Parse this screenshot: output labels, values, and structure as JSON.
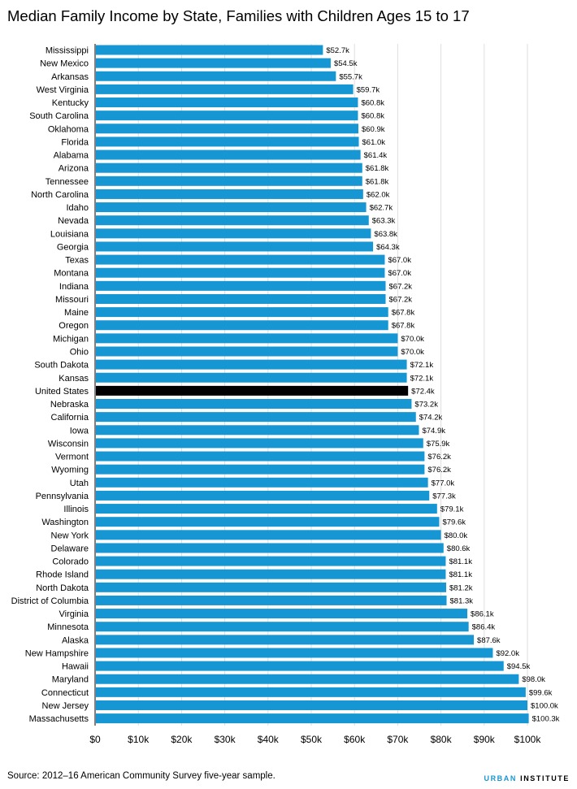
{
  "title": "Median Family Income by State, Families with Children Ages 15 to 17",
  "source": "Source: 2012–16 American Community Survey five-year sample.",
  "brand": {
    "part1": "URBAN",
    "part2": "INSTITUTE"
  },
  "colors": {
    "bar": "#1696d2",
    "highlight": "#000000",
    "grid": "#dedede",
    "text": "#000000"
  },
  "chart_data": {
    "type": "bar",
    "orientation": "horizontal",
    "title": "Median Family Income by State, Families with Children Ages 15 to 17",
    "xlabel": "",
    "ylabel": "",
    "xlim": [
      0,
      100000
    ],
    "grid": true,
    "highlight_category": "United States",
    "x_ticks": [
      0,
      10000,
      20000,
      30000,
      40000,
      50000,
      60000,
      70000,
      80000,
      90000,
      100000
    ],
    "x_tick_labels": [
      "$0",
      "$10k",
      "$20k",
      "$30k",
      "$40k",
      "$50k",
      "$60k",
      "$70k",
      "$80k",
      "$90k",
      "$100k"
    ],
    "categories": [
      "Mississippi",
      "New Mexico",
      "Arkansas",
      "West Virginia",
      "Kentucky",
      "South Carolina",
      "Oklahoma",
      "Florida",
      "Alabama",
      "Arizona",
      "Tennessee",
      "North Carolina",
      "Idaho",
      "Nevada",
      "Louisiana",
      "Georgia",
      "Texas",
      "Montana",
      "Indiana",
      "Missouri",
      "Maine",
      "Oregon",
      "Michigan",
      "Ohio",
      "South Dakota",
      "Kansas",
      "United States",
      "Nebraska",
      "California",
      "Iowa",
      "Wisconsin",
      "Vermont",
      "Wyoming",
      "Utah",
      "Pennsylvania",
      "Illinois",
      "Washington",
      "New York",
      "Delaware",
      "Colorado",
      "Rhode Island",
      "North Dakota",
      "District of Columbia",
      "Virginia",
      "Minnesota",
      "Alaska",
      "New Hampshire",
      "Hawaii",
      "Maryland",
      "Connecticut",
      "New Jersey",
      "Massachusetts"
    ],
    "values": [
      52700,
      54500,
      55700,
      59700,
      60800,
      60800,
      60900,
      61000,
      61400,
      61800,
      61800,
      62000,
      62700,
      63300,
      63800,
      64300,
      67000,
      67000,
      67200,
      67200,
      67800,
      67800,
      70000,
      70000,
      72100,
      72100,
      72400,
      73200,
      74200,
      74900,
      75900,
      76200,
      76200,
      77000,
      77300,
      79100,
      79600,
      80000,
      80600,
      81100,
      81100,
      81200,
      81300,
      86100,
      86400,
      87600,
      92000,
      94500,
      98000,
      99600,
      100000,
      100300
    ],
    "value_labels": [
      "$52.7k",
      "$54.5k",
      "$55.7k",
      "$59.7k",
      "$60.8k",
      "$60.8k",
      "$60.9k",
      "$61.0k",
      "$61.4k",
      "$61.8k",
      "$61.8k",
      "$62.0k",
      "$62.7k",
      "$63.3k",
      "$63.8k",
      "$64.3k",
      "$67.0k",
      "$67.0k",
      "$67.2k",
      "$67.2k",
      "$67.8k",
      "$67.8k",
      "$70.0k",
      "$70.0k",
      "$72.1k",
      "$72.1k",
      "$72.4k",
      "$73.2k",
      "$74.2k",
      "$74.9k",
      "$75.9k",
      "$76.2k",
      "$76.2k",
      "$77.0k",
      "$77.3k",
      "$79.1k",
      "$79.6k",
      "$80.0k",
      "$80.6k",
      "$81.1k",
      "$81.1k",
      "$81.2k",
      "$81.3k",
      "$86.1k",
      "$86.4k",
      "$87.6k",
      "$92.0k",
      "$94.5k",
      "$98.0k",
      "$99.6k",
      "$100.0k",
      "$100.3k"
    ]
  }
}
